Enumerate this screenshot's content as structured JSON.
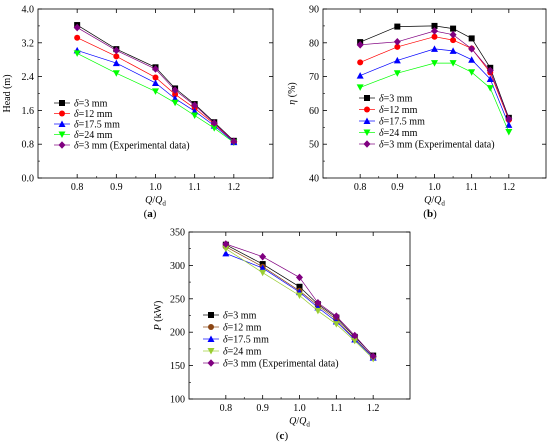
{
  "chart_data": [
    {
      "type": "line",
      "panel": "(a)",
      "ylabel": "Head (m)",
      "xlabel_parts": [
        "Q",
        "/",
        "Q",
        "d"
      ],
      "x": [
        0.8,
        0.9,
        1.0,
        1.05,
        1.1,
        1.15,
        1.2
      ],
      "x_ticks": [
        "0.8",
        "0.9",
        "1.0",
        "1.1",
        "1.2"
      ],
      "x_tick_values": [
        0.8,
        0.9,
        1.0,
        1.1,
        1.2
      ],
      "xlim": [
        0.7,
        1.3
      ],
      "ylim": [
        0.0,
        4.0
      ],
      "y_ticks": [
        "0.0",
        "0.8",
        "1.6",
        "2.4",
        "3.2",
        "4.0"
      ],
      "y_tick_values": [
        0.0,
        0.8,
        1.6,
        2.4,
        3.2,
        4.0
      ],
      "legend_position": "lower-left",
      "series": [
        {
          "name": "δ=3 mm",
          "color": "#000000",
          "marker": "square",
          "values": [
            3.62,
            3.05,
            2.62,
            2.12,
            1.75,
            1.32,
            0.88
          ]
        },
        {
          "name": "δ=12 mm",
          "color": "#ff0000",
          "marker": "circle",
          "values": [
            3.32,
            2.88,
            2.38,
            1.98,
            1.65,
            1.28,
            0.86
          ]
        },
        {
          "name": "δ=17.5 mm",
          "color": "#0000ff",
          "marker": "triangle-up",
          "values": [
            3.02,
            2.72,
            2.25,
            1.88,
            1.58,
            1.24,
            0.85
          ]
        },
        {
          "name": "δ=24 mm",
          "color": "#00ff00",
          "marker": "triangle-down",
          "values": [
            2.95,
            2.48,
            2.05,
            1.78,
            1.48,
            1.18,
            0.84
          ]
        },
        {
          "name": "δ=3 mm (Experimental data)",
          "color": "#800080",
          "marker": "diamond",
          "values": [
            3.56,
            3.02,
            2.58,
            2.08,
            1.72,
            1.3,
            0.87
          ]
        }
      ]
    },
    {
      "type": "line",
      "panel": "(b)",
      "ylabel": "η (%)",
      "xlabel_parts": [
        "Q",
        "/",
        "Q",
        "d"
      ],
      "x": [
        0.8,
        0.9,
        1.0,
        1.05,
        1.1,
        1.15,
        1.2
      ],
      "x_ticks": [
        "0.8",
        "0.9",
        "1.0",
        "1.1",
        "1.2"
      ],
      "x_tick_values": [
        0.8,
        0.9,
        1.0,
        1.1,
        1.2
      ],
      "xlim": [
        0.7,
        1.3
      ],
      "ylim": [
        40,
        90
      ],
      "y_ticks": [
        "40",
        "50",
        "60",
        "70",
        "80",
        "90"
      ],
      "y_tick_values": [
        40,
        50,
        60,
        70,
        80,
        90
      ],
      "legend_position": "lower-right",
      "series": [
        {
          "name": "δ=3 mm",
          "color": "#000000",
          "marker": "square",
          "values": [
            80.2,
            84.8,
            85.0,
            84.2,
            81.3,
            72.6,
            57.8
          ]
        },
        {
          "name": "δ=12 mm",
          "color": "#ff0000",
          "marker": "circle",
          "values": [
            74.2,
            78.8,
            81.8,
            80.8,
            78.3,
            71.2,
            57.2
          ]
        },
        {
          "name": "δ=17.5 mm",
          "color": "#0000ff",
          "marker": "triangle-up",
          "values": [
            70.3,
            74.8,
            78.2,
            77.6,
            75.0,
            69.3,
            55.7
          ]
        },
        {
          "name": "δ=24 mm",
          "color": "#00ff00",
          "marker": "triangle-down",
          "values": [
            66.8,
            71.0,
            74.0,
            74.0,
            71.3,
            66.6,
            53.6
          ]
        },
        {
          "name": "δ=3 mm (Experimental data)",
          "color": "#800080",
          "marker": "diamond",
          "values": [
            79.4,
            80.3,
            83.5,
            82.4,
            78.2,
            71.8,
            57.5
          ]
        }
      ]
    },
    {
      "type": "line",
      "panel": "(c)",
      "ylabel": "P (kW)",
      "xlabel_parts": [
        "Q",
        "/",
        "Q",
        "d"
      ],
      "x": [
        0.8,
        0.9,
        1.0,
        1.05,
        1.1,
        1.15,
        1.2
      ],
      "x_ticks": [
        "0.8",
        "0.9",
        "1.0",
        "1.1",
        "1.2"
      ],
      "x_tick_values": [
        0.8,
        0.9,
        1.0,
        1.1,
        1.2
      ],
      "xlim": [
        0.7,
        1.3
      ],
      "ylim": [
        100,
        350
      ],
      "y_ticks": [
        "100",
        "150",
        "200",
        "250",
        "300",
        "350"
      ],
      "y_tick_values": [
        100,
        150,
        200,
        250,
        300,
        350
      ],
      "legend_position": "lower-left",
      "series": [
        {
          "name": "δ=3 mm",
          "color": "#000000",
          "marker": "square",
          "values": [
            331,
            302,
            268,
            242,
            222,
            193,
            165
          ]
        },
        {
          "name": "δ=12 mm",
          "color": "#8b4513",
          "marker": "circle",
          "values": [
            328,
            298,
            262,
            240,
            219,
            190,
            163
          ]
        },
        {
          "name": "δ=17.5 mm",
          "color": "#0000ff",
          "marker": "triangle-up",
          "values": [
            318,
            296,
            260,
            237,
            216,
            189,
            162
          ]
        },
        {
          "name": "δ=24 mm",
          "color": "#9acd32",
          "marker": "triangle-down",
          "values": [
            325,
            289,
            255,
            232,
            212,
            187,
            160
          ]
        },
        {
          "name": "δ=3 mm (Experimental data)",
          "color": "#800080",
          "marker": "diamond",
          "values": [
            332,
            313,
            282,
            244,
            224,
            195,
            164
          ]
        }
      ]
    }
  ]
}
